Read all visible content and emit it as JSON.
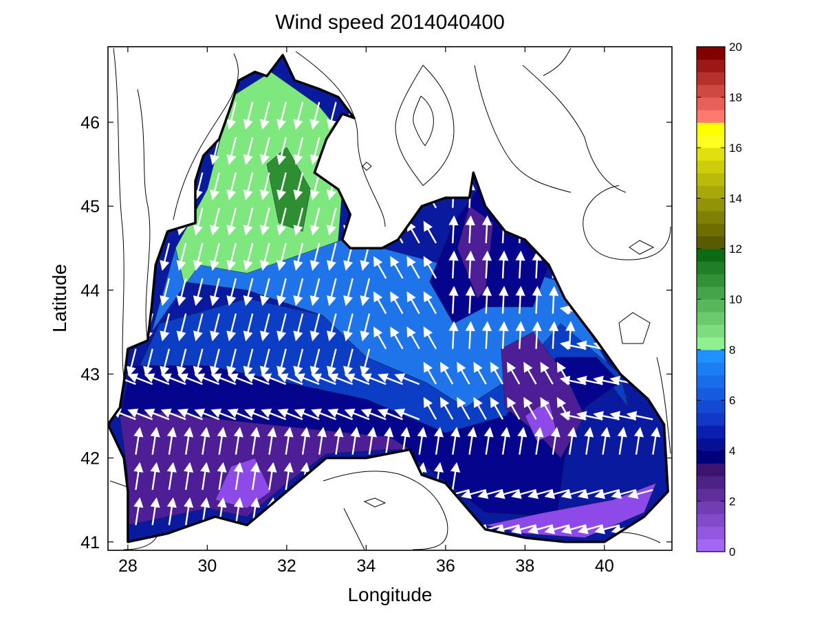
{
  "figure": {
    "title": "Wind speed 2014040400",
    "xlabel": "Longitude",
    "ylabel": "Latitude"
  },
  "chart_data": {
    "type": "heatmap",
    "title": "Wind speed 2014040400",
    "xlabel": "Longitude",
    "ylabel": "Latitude",
    "xlim": [
      27.5,
      41.7
    ],
    "ylim": [
      40.9,
      46.9
    ],
    "xticks": [
      28,
      30,
      32,
      34,
      36,
      38,
      40
    ],
    "yticks": [
      41,
      42,
      43,
      44,
      45,
      46
    ],
    "xtick_labels": [
      "28",
      "30",
      "32",
      "34",
      "36",
      "38",
      "40"
    ],
    "ytick_labels": [
      "41",
      "42",
      "43",
      "44",
      "45",
      "46"
    ],
    "colorbar": {
      "range": [
        0,
        20
      ],
      "ticks": [
        0,
        2,
        4,
        6,
        8,
        10,
        12,
        14,
        16,
        18,
        20
      ],
      "tick_labels": [
        "0",
        "2",
        "4",
        "6",
        "8",
        "10",
        "12",
        "14",
        "16",
        "18",
        "20"
      ],
      "bands": [
        {
          "from": 0,
          "to": 3.5,
          "color_from": "#a366f5",
          "color_to": "#3c1470"
        },
        {
          "from": 3.5,
          "to": 5,
          "color_from": "#00007a",
          "color_to": "#0a1fae"
        },
        {
          "from": 5,
          "to": 8,
          "color_from": "#1238c8",
          "color_to": "#1e90ff"
        },
        {
          "from": 8,
          "to": 12,
          "color_from": "#90f090",
          "color_to": "#0d6b14"
        },
        {
          "from": 12,
          "to": 16,
          "color_from": "#5a5a00",
          "color_to": "#e0e010"
        },
        {
          "from": 16,
          "to": 17,
          "color_from": "#ffff20",
          "color_to": "#ffff00"
        },
        {
          "from": 17,
          "to": 20,
          "color_from": "#ff7a6e",
          "color_to": "#820000"
        }
      ]
    },
    "grid": false,
    "basin_outline": [
      [
        28.0,
        41.0
      ],
      [
        29.0,
        41.1
      ],
      [
        30.2,
        41.3
      ],
      [
        31.0,
        41.2
      ],
      [
        32.0,
        41.6
      ],
      [
        33.0,
        42.0
      ],
      [
        34.0,
        42.0
      ],
      [
        35.1,
        42.1
      ],
      [
        35.4,
        41.8
      ],
      [
        36.0,
        41.7
      ],
      [
        37.0,
        41.15
      ],
      [
        38.0,
        41.05
      ],
      [
        39.0,
        41.0
      ],
      [
        40.0,
        41.0
      ],
      [
        41.0,
        41.3
      ],
      [
        41.6,
        41.6
      ],
      [
        41.5,
        42.4
      ],
      [
        41.1,
        42.7
      ],
      [
        40.4,
        43.0
      ],
      [
        39.8,
        43.4
      ],
      [
        39.0,
        43.9
      ],
      [
        38.6,
        44.3
      ],
      [
        38.0,
        44.6
      ],
      [
        37.5,
        44.7
      ],
      [
        37.0,
        45.0
      ],
      [
        36.7,
        45.4
      ],
      [
        36.6,
        45.1
      ],
      [
        36.0,
        45.1
      ],
      [
        35.4,
        45.0
      ],
      [
        35.1,
        44.8
      ],
      [
        34.8,
        44.6
      ],
      [
        34.4,
        44.5
      ],
      [
        33.6,
        44.5
      ],
      [
        33.4,
        44.6
      ],
      [
        33.6,
        44.9
      ],
      [
        33.3,
        45.2
      ],
      [
        32.7,
        45.4
      ],
      [
        33.0,
        45.8
      ],
      [
        33.4,
        46.1
      ],
      [
        33.7,
        46.05
      ],
      [
        33.3,
        46.3
      ],
      [
        32.8,
        46.4
      ],
      [
        32.2,
        46.5
      ],
      [
        31.9,
        46.8
      ],
      [
        31.5,
        46.55
      ],
      [
        31.2,
        46.6
      ],
      [
        30.8,
        46.5
      ],
      [
        30.6,
        46.2
      ],
      [
        30.3,
        45.8
      ],
      [
        29.9,
        45.6
      ],
      [
        29.7,
        45.3
      ],
      [
        29.7,
        44.8
      ],
      [
        29.0,
        44.7
      ],
      [
        28.7,
        44.3
      ],
      [
        28.6,
        43.8
      ],
      [
        28.5,
        43.4
      ],
      [
        28.0,
        43.3
      ],
      [
        27.9,
        42.9
      ],
      [
        27.8,
        42.6
      ],
      [
        27.5,
        42.4
      ],
      [
        27.9,
        42.0
      ],
      [
        28.0,
        41.6
      ],
      [
        28.0,
        41.0
      ]
    ],
    "speed_regions": [
      {
        "speed_class": "8-10",
        "color": "#7ee87e",
        "polygon": [
          [
            29.2,
            44.5
          ],
          [
            30.0,
            45.2
          ],
          [
            30.6,
            46.3
          ],
          [
            31.6,
            46.6
          ],
          [
            32.8,
            46.2
          ],
          [
            33.5,
            45.8
          ],
          [
            33.3,
            44.6
          ],
          [
            32.9,
            43.7
          ],
          [
            31.0,
            44.0
          ],
          [
            29.4,
            44.1
          ]
        ]
      },
      {
        "speed_class": "10-12",
        "color": "#2e8e32",
        "polygon": [
          [
            31.5,
            45.5
          ],
          [
            32.0,
            45.7
          ],
          [
            32.6,
            45.2
          ],
          [
            32.4,
            44.7
          ],
          [
            31.8,
            44.8
          ]
        ]
      },
      {
        "speed_class": "6-8",
        "color": "#1e74e8",
        "polygon": [
          [
            28.6,
            43.5
          ],
          [
            28.9,
            44.0
          ],
          [
            29.2,
            44.5
          ],
          [
            29.4,
            44.1
          ],
          [
            31.0,
            44.0
          ],
          [
            32.9,
            43.7
          ],
          [
            34.0,
            43.2
          ],
          [
            35.5,
            42.9
          ],
          [
            36.5,
            42.6
          ],
          [
            37.8,
            43.0
          ],
          [
            38.8,
            43.4
          ],
          [
            40.0,
            43.0
          ],
          [
            40.6,
            42.7
          ],
          [
            38.9,
            44.1
          ],
          [
            37.5,
            44.3
          ],
          [
            36.0,
            44.3
          ],
          [
            34.4,
            44.5
          ],
          [
            33.4,
            44.6
          ],
          [
            31.0,
            44.2
          ],
          [
            29.8,
            44.3
          ]
        ]
      },
      {
        "speed_class": "5-6",
        "color": "#0b3ec4",
        "polygon": [
          [
            28.2,
            43.0
          ],
          [
            30.0,
            43.0
          ],
          [
            32.0,
            42.85
          ],
          [
            34.0,
            42.6
          ],
          [
            36.0,
            42.2
          ],
          [
            37.5,
            42.4
          ],
          [
            38.8,
            43.1
          ],
          [
            39.8,
            43.1
          ],
          [
            40.6,
            42.6
          ],
          [
            40.4,
            43.0
          ],
          [
            38.9,
            43.6
          ],
          [
            37.8,
            43.0
          ],
          [
            36.5,
            42.6
          ],
          [
            35.5,
            42.9
          ],
          [
            34.0,
            43.2
          ],
          [
            32.9,
            43.7
          ],
          [
            31.0,
            43.9
          ],
          [
            28.8,
            43.6
          ]
        ]
      },
      {
        "speed_class": "3.5-5",
        "color": "#04048c",
        "polygon": [
          [
            27.8,
            42.5
          ],
          [
            29.0,
            42.5
          ],
          [
            30.5,
            42.4
          ],
          [
            32.5,
            42.3
          ],
          [
            34.5,
            42.2
          ],
          [
            35.5,
            41.9
          ],
          [
            37.0,
            41.35
          ],
          [
            38.8,
            41.3
          ],
          [
            39.0,
            42.0
          ],
          [
            39.5,
            42.6
          ],
          [
            40.4,
            42.9
          ],
          [
            39.8,
            43.2
          ],
          [
            38.8,
            43.2
          ],
          [
            37.5,
            42.5
          ],
          [
            36.0,
            42.3
          ],
          [
            34.0,
            42.7
          ],
          [
            32.0,
            42.9
          ],
          [
            30.0,
            43.1
          ],
          [
            28.1,
            43.1
          ]
        ]
      },
      {
        "speed_class": "3.5-5",
        "color": "#04048c",
        "polygon": [
          [
            35.6,
            44.1
          ],
          [
            36.2,
            44.8
          ],
          [
            36.8,
            45.2
          ],
          [
            37.6,
            44.8
          ],
          [
            38.6,
            44.3
          ],
          [
            38.2,
            43.8
          ],
          [
            37.0,
            43.8
          ],
          [
            36.2,
            43.6
          ]
        ]
      },
      {
        "speed_class": "2-3.5",
        "color": "#4e1e96",
        "polygon": [
          [
            36.3,
            44.5
          ],
          [
            36.6,
            45.0
          ],
          [
            37.2,
            44.8
          ],
          [
            37.0,
            44.0
          ],
          [
            36.8,
            43.9
          ]
        ]
      },
      {
        "speed_class": "2-3.5",
        "color": "#4e1e96",
        "polygon": [
          [
            37.4,
            43.3
          ],
          [
            38.2,
            43.5
          ],
          [
            39.0,
            43.0
          ],
          [
            39.5,
            42.5
          ],
          [
            38.9,
            42.0
          ],
          [
            38.3,
            42.3
          ],
          [
            37.5,
            42.6
          ]
        ]
      },
      {
        "speed_class": "2-3.5",
        "color": "#4e1e96",
        "polygon": [
          [
            28.0,
            41.2
          ],
          [
            30.0,
            41.4
          ],
          [
            31.0,
            41.3
          ],
          [
            32.0,
            41.7
          ],
          [
            33.0,
            42.05
          ],
          [
            34.5,
            42.1
          ],
          [
            35.1,
            42.1
          ],
          [
            34.6,
            42.25
          ],
          [
            32.5,
            42.35
          ],
          [
            30.5,
            42.45
          ],
          [
            29.0,
            42.55
          ],
          [
            27.8,
            42.5
          ],
          [
            28.0,
            41.8
          ]
        ]
      },
      {
        "speed_class": "0-2",
        "color": "#8e4ae8",
        "polygon": [
          [
            30.2,
            41.5
          ],
          [
            31.0,
            41.4
          ],
          [
            31.6,
            41.6
          ],
          [
            31.2,
            42.0
          ],
          [
            30.6,
            41.9
          ]
        ]
      },
      {
        "speed_class": "0-2",
        "color": "#8e4ae8",
        "polygon": [
          [
            37.0,
            41.2
          ],
          [
            38.0,
            41.1
          ],
          [
            39.5,
            41.05
          ],
          [
            41.0,
            41.35
          ],
          [
            41.3,
            41.7
          ],
          [
            40.2,
            41.5
          ],
          [
            38.5,
            41.35
          ]
        ]
      },
      {
        "speed_class": "0-2",
        "color": "#8e4ae8",
        "polygon": [
          [
            38.0,
            42.5
          ],
          [
            38.6,
            42.7
          ],
          [
            38.8,
            42.3
          ],
          [
            38.3,
            42.2
          ]
        ]
      }
    ]
  }
}
